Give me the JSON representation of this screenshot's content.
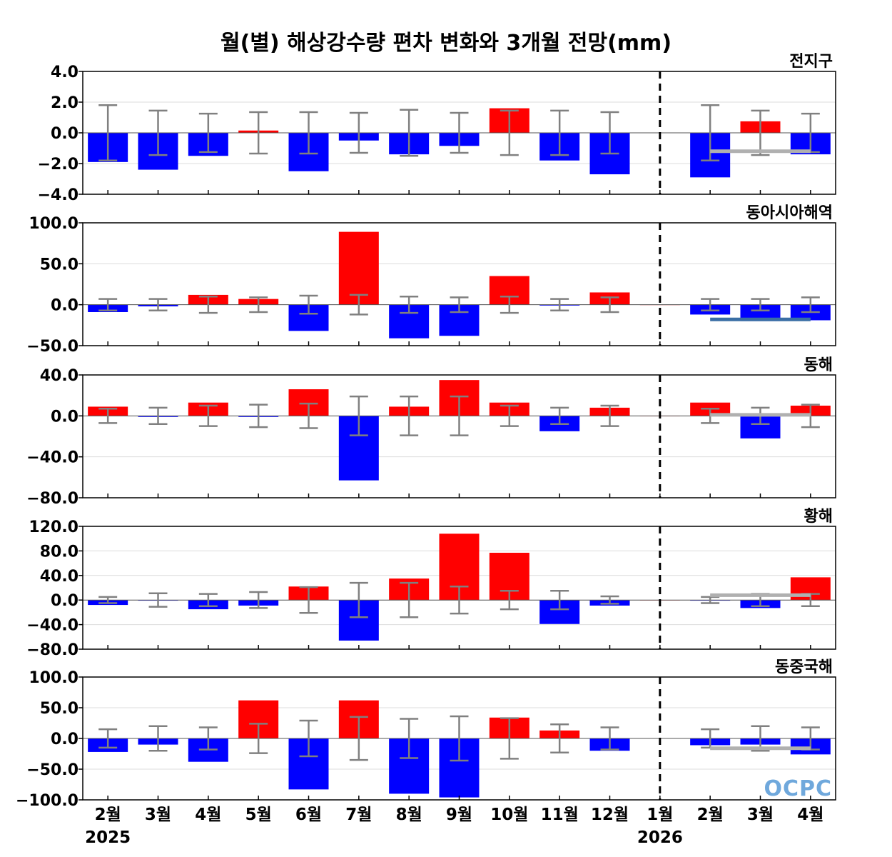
{
  "title": "월(별) 해상강수량 편차 변화와 3개월 전망(mm)",
  "logo_text": "OCPC",
  "x_tick_labels": [
    "2월",
    "3월",
    "4월",
    "5월",
    "6월",
    "7월",
    "8월",
    "9월",
    "10월",
    "11월",
    "12월",
    "1월",
    "2월",
    "3월",
    "4월"
  ],
  "year_labels": [
    {
      "label": "2025",
      "index": 0
    },
    {
      "label": "2026",
      "index": 11
    }
  ],
  "colors": {
    "positive": "#ff0000",
    "negative": "#0000ff",
    "error_bar": "#808080",
    "forecast_line_gray": "#b0b0b0",
    "forecast_line_blue": "#3a6ea5",
    "divider": "#000000"
  },
  "chart_data": [
    {
      "type": "bar",
      "name": "전지구",
      "ylim": [
        -4,
        4
      ],
      "y_ticks": [
        4,
        2,
        0,
        -2,
        -4
      ],
      "y_tick_labels": [
        "4.0",
        "2.0",
        "0.0",
        "−2.0",
        "−4.0"
      ],
      "values": [
        -1.9,
        -2.4,
        -1.5,
        0.15,
        -2.5,
        -0.5,
        -1.4,
        -0.85,
        1.6,
        -1.8,
        -2.7,
        0,
        -2.9,
        0.75,
        -1.4
      ],
      "error_bars": [
        1.8,
        1.45,
        1.25,
        1.35,
        1.35,
        1.3,
        1.5,
        1.3,
        1.45,
        1.45,
        1.35,
        0,
        1.8,
        1.45,
        1.25
      ],
      "forecast_line": {
        "value": -1.2,
        "from_index": 12,
        "to_index": 14,
        "color": "gray"
      }
    },
    {
      "type": "bar",
      "name": "동아시아해역",
      "ylim": [
        -50,
        100
      ],
      "y_ticks": [
        100,
        50,
        0,
        -50
      ],
      "y_tick_labels": [
        "100.0",
        "50.0",
        "0.0",
        "−50.0"
      ],
      "values": [
        -9,
        -2,
        12,
        7,
        -32,
        89,
        -41,
        -38,
        35,
        -1,
        15,
        0,
        -12,
        -20,
        -19
      ],
      "error_bars": [
        7,
        7,
        10,
        9,
        11,
        12,
        10,
        9,
        10,
        7,
        9,
        0,
        7,
        7,
        9
      ],
      "forecast_line": {
        "value": -18,
        "from_index": 12,
        "to_index": 14,
        "color": "blue"
      }
    },
    {
      "type": "bar",
      "name": "동해",
      "ylim": [
        -80,
        40
      ],
      "y_ticks": [
        40,
        0,
        -40,
        -80
      ],
      "y_tick_labels": [
        "40.0",
        "0.0",
        "−40.0",
        "−80.0"
      ],
      "values": [
        9,
        -1,
        13,
        -1,
        26,
        -63,
        9,
        35,
        13,
        -15,
        8,
        0,
        13,
        -22,
        10
      ],
      "error_bars": [
        7,
        8,
        10,
        11,
        12,
        19,
        19,
        19,
        10,
        8,
        10,
        0,
        7,
        8,
        11
      ],
      "forecast_line": {
        "value": 1,
        "from_index": 12,
        "to_index": 14,
        "color": "gray"
      }
    },
    {
      "type": "bar",
      "name": "황해",
      "ylim": [
        -80,
        120
      ],
      "y_ticks": [
        120,
        80,
        40,
        0,
        -40,
        -80
      ],
      "y_tick_labels": [
        "120.0",
        "80.0",
        "40.0",
        "0.0",
        "−40.0",
        "−80.0"
      ],
      "values": [
        -8,
        -1,
        -15,
        -9,
        22,
        -66,
        35,
        108,
        77,
        -39,
        -9,
        0,
        -1,
        -13,
        37
      ],
      "error_bars": [
        5,
        11,
        10,
        13,
        21,
        28,
        28,
        22,
        15,
        15,
        6,
        0,
        5,
        10,
        10
      ],
      "forecast_line": {
        "value": 8,
        "from_index": 12,
        "to_index": 14,
        "color": "gray"
      }
    },
    {
      "type": "bar",
      "name": "동중국해",
      "ylim": [
        -100,
        100
      ],
      "y_ticks": [
        100,
        50,
        0,
        -50,
        -100
      ],
      "y_tick_labels": [
        "100.0",
        "50.0",
        "0.0",
        "−50.0",
        "−100.0"
      ],
      "values": [
        -22,
        -10,
        -38,
        62,
        -83,
        62,
        -90,
        -96,
        34,
        13,
        -20,
        0,
        -11,
        -10,
        -26
      ],
      "error_bars": [
        15,
        20,
        18,
        24,
        29,
        35,
        32,
        36,
        33,
        23,
        18,
        0,
        15,
        20,
        18
      ],
      "forecast_line": {
        "value": -16,
        "from_index": 12,
        "to_index": 14,
        "color": "gray"
      }
    }
  ]
}
